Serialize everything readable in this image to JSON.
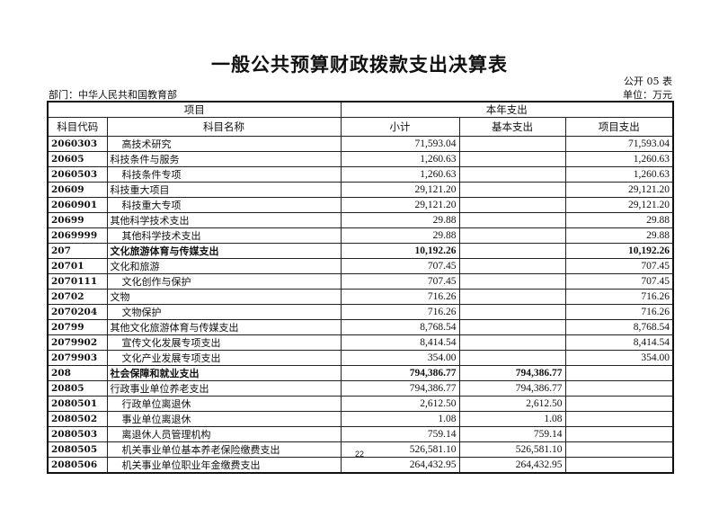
{
  "title": "一般公共预算财政拨款支出决算表",
  "form_no": "公开 05 表",
  "department": "部门：中华人民共和国教育部",
  "unit": "单位：万元",
  "header": {
    "group1": "项目",
    "group2": "本年支出",
    "code": "科目代码",
    "name": "科目名称",
    "subtotal": "小计",
    "basic": "基本支出",
    "project": "项目支出"
  },
  "rows": [
    {
      "code": "2060303",
      "name": "高技术研究",
      "subtotal": "71,593.04",
      "basic": "",
      "project": "71,593.04",
      "indent": true
    },
    {
      "code": "20605",
      "name": "科技条件与服务",
      "subtotal": "1,260.63",
      "basic": "",
      "project": "1,260.63"
    },
    {
      "code": "2060503",
      "name": "科技条件专项",
      "subtotal": "1,260.63",
      "basic": "",
      "project": "1,260.63",
      "indent": true
    },
    {
      "code": "20609",
      "name": "科技重大项目",
      "subtotal": "29,121.20",
      "basic": "",
      "project": "29,121.20"
    },
    {
      "code": "2060901",
      "name": "科技重大专项",
      "subtotal": "29,121.20",
      "basic": "",
      "project": "29,121.20",
      "indent": true
    },
    {
      "code": "20699",
      "name": "其他科学技术支出",
      "subtotal": "29.88",
      "basic": "",
      "project": "29.88"
    },
    {
      "code": "2069999",
      "name": "其他科学技术支出",
      "subtotal": "29.88",
      "basic": "",
      "project": "29.88",
      "indent": true
    },
    {
      "code": "207",
      "name": "文化旅游体育与传媒支出",
      "subtotal": "10,192.26",
      "basic": "",
      "project": "10,192.26",
      "bold": true
    },
    {
      "code": "20701",
      "name": "文化和旅游",
      "subtotal": "707.45",
      "basic": "",
      "project": "707.45"
    },
    {
      "code": "2070111",
      "name": "文化创作与保护",
      "subtotal": "707.45",
      "basic": "",
      "project": "707.45",
      "indent": true
    },
    {
      "code": "20702",
      "name": "文物",
      "subtotal": "716.26",
      "basic": "",
      "project": "716.26"
    },
    {
      "code": "2070204",
      "name": "文物保护",
      "subtotal": "716.26",
      "basic": "",
      "project": "716.26",
      "indent": true
    },
    {
      "code": "20799",
      "name": "其他文化旅游体育与传媒支出",
      "subtotal": "8,768.54",
      "basic": "",
      "project": "8,768.54"
    },
    {
      "code": "2079902",
      "name": "宣传文化发展专项支出",
      "subtotal": "8,414.54",
      "basic": "",
      "project": "8,414.54",
      "indent": true
    },
    {
      "code": "2079903",
      "name": "文化产业发展专项支出",
      "subtotal": "354.00",
      "basic": "",
      "project": "354.00",
      "indent": true
    },
    {
      "code": "208",
      "name": "社会保障和就业支出",
      "subtotal": "794,386.77",
      "basic": "794,386.77",
      "project": "",
      "bold": true
    },
    {
      "code": "20805",
      "name": "行政事业单位养老支出",
      "subtotal": "794,386.77",
      "basic": "794,386.77",
      "project": ""
    },
    {
      "code": "2080501",
      "name": "行政单位离退休",
      "subtotal": "2,612.50",
      "basic": "2,612.50",
      "project": "",
      "indent": true
    },
    {
      "code": "2080502",
      "name": "事业单位离退休",
      "subtotal": "1.08",
      "basic": "1.08",
      "project": "",
      "indent": true
    },
    {
      "code": "2080503",
      "name": "离退休人员管理机构",
      "subtotal": "759.14",
      "basic": "759.14",
      "project": "",
      "indent": true
    },
    {
      "code": "2080505",
      "name": "机关事业单位基本养老保险缴费支出",
      "subtotal": "526,581.10",
      "basic": "526,581.10",
      "project": "",
      "indent": true
    },
    {
      "code": "2080506",
      "name": "机关事业单位职业年金缴费支出",
      "subtotal": "264,432.95",
      "basic": "264,432.95",
      "project": "",
      "indent": true
    }
  ],
  "page_number": "22"
}
